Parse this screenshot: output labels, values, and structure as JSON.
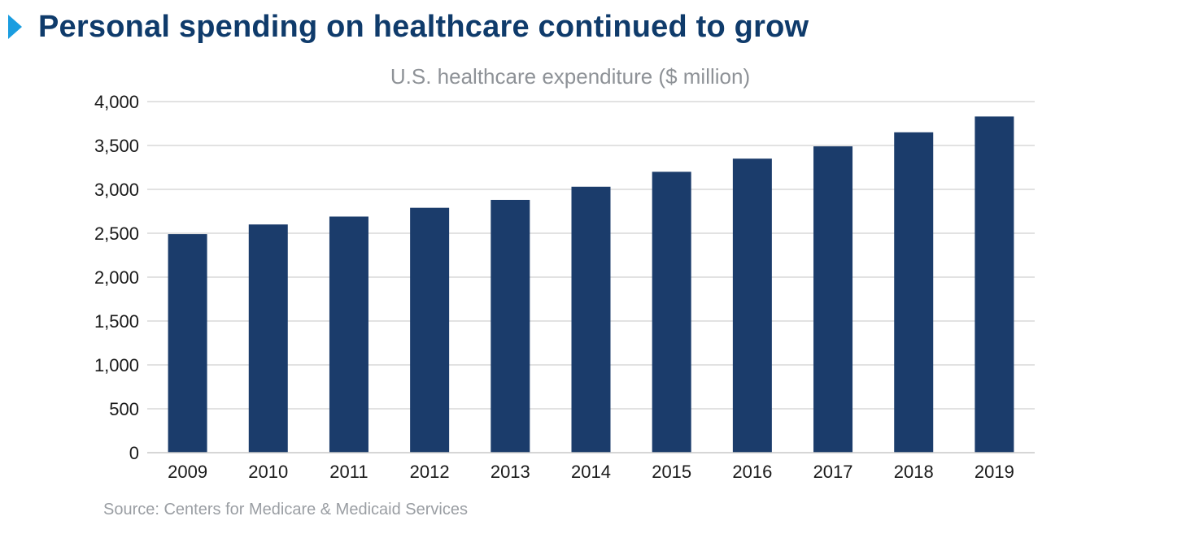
{
  "headline": {
    "title": "Personal spending on healthcare continued to grow",
    "accent_color": "#1a9de0",
    "title_color": "#0f3b6b"
  },
  "chart_data": {
    "type": "bar",
    "title": "U.S. healthcare expenditure ($ million)",
    "xlabel": "",
    "ylabel": "",
    "categories": [
      "2009",
      "2010",
      "2011",
      "2012",
      "2013",
      "2014",
      "2015",
      "2016",
      "2017",
      "2018",
      "2019"
    ],
    "values": [
      2490,
      2600,
      2690,
      2790,
      2880,
      3030,
      3200,
      3350,
      3490,
      3650,
      3830
    ],
    "ylim": [
      0,
      4000
    ],
    "yticks": [
      0,
      500,
      1000,
      1500,
      2000,
      2500,
      3000,
      3500,
      4000
    ],
    "ytick_labels": [
      "0",
      "500",
      "1,000",
      "1,500",
      "2,000",
      "2,500",
      "3,000",
      "3,500",
      "4,000"
    ],
    "grid": true,
    "legend": "none",
    "bar_color": "#1b3c6b"
  },
  "source": "Source: Centers for Medicare & Medicaid Services"
}
